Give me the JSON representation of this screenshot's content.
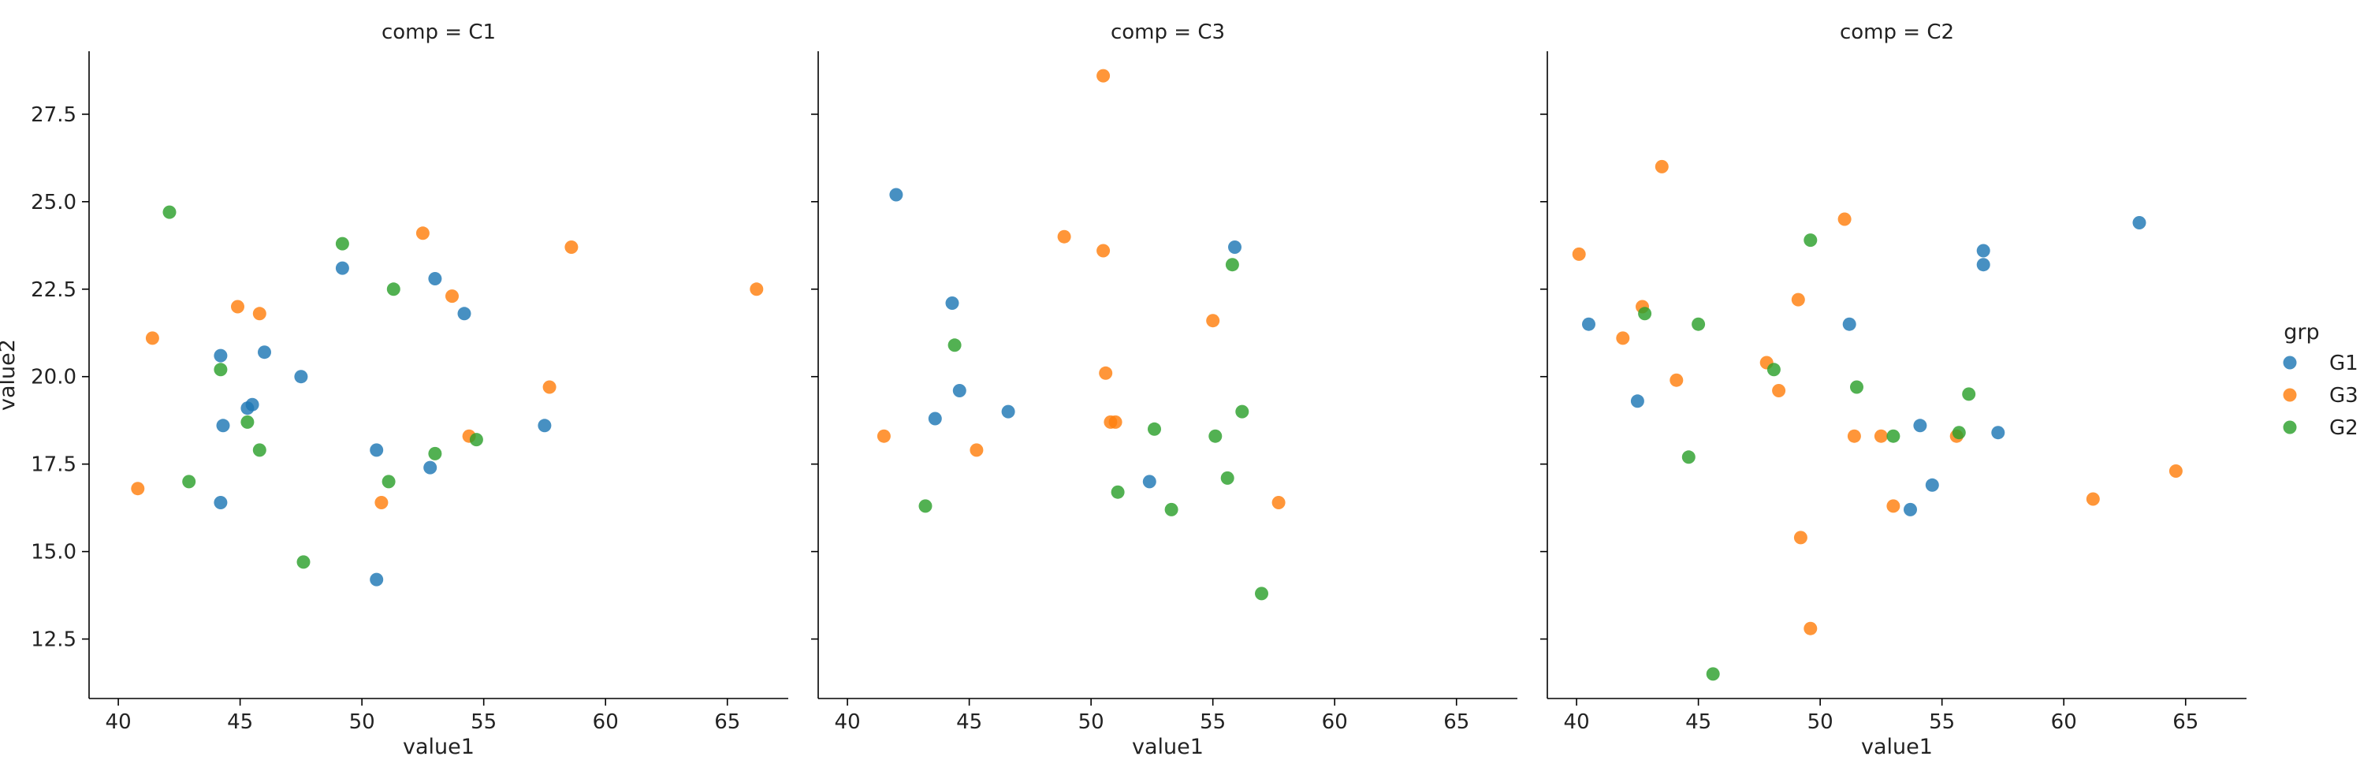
{
  "chart_data": {
    "type": "scatter",
    "xlabel": "value1",
    "ylabel": "value2",
    "xlim": [
      38.8,
      67.5
    ],
    "ylim": [
      10.8,
      29.3
    ],
    "x_ticks": [
      40,
      45,
      50,
      55,
      60,
      65
    ],
    "y_ticks": [
      12.5,
      15.0,
      17.5,
      20.0,
      22.5,
      25.0,
      27.5
    ],
    "grid": false,
    "legend": {
      "title": "grp",
      "placement": "right",
      "entries": [
        {
          "name": "G1",
          "color": "#1f77b4"
        },
        {
          "name": "G3",
          "color": "#ff7f0e"
        },
        {
          "name": "G2",
          "color": "#2ca02c"
        }
      ]
    },
    "facets": [
      {
        "title": "comp = C1",
        "series": [
          {
            "name": "G1",
            "points": [
              [
                44.2,
                20.6
              ],
              [
                46.0,
                20.7
              ],
              [
                47.5,
                20.0
              ],
              [
                44.3,
                18.6
              ],
              [
                45.3,
                19.1
              ],
              [
                45.5,
                19.2
              ],
              [
                44.2,
                16.4
              ],
              [
                49.2,
                23.1
              ],
              [
                53.0,
                22.8
              ],
              [
                54.2,
                21.8
              ],
              [
                50.6,
                17.9
              ],
              [
                52.8,
                17.4
              ],
              [
                57.5,
                18.6
              ],
              [
                50.6,
                14.2
              ]
            ]
          },
          {
            "name": "G3",
            "points": [
              [
                41.4,
                21.1
              ],
              [
                44.9,
                22.0
              ],
              [
                45.8,
                21.8
              ],
              [
                40.8,
                16.8
              ],
              [
                52.5,
                24.1
              ],
              [
                53.7,
                22.3
              ],
              [
                58.6,
                23.7
              ],
              [
                57.7,
                19.7
              ],
              [
                54.4,
                18.3
              ],
              [
                50.8,
                16.4
              ],
              [
                66.2,
                22.5
              ]
            ]
          },
          {
            "name": "G2",
            "points": [
              [
                42.1,
                24.7
              ],
              [
                44.2,
                20.2
              ],
              [
                45.3,
                18.7
              ],
              [
                45.8,
                17.9
              ],
              [
                42.9,
                17.0
              ],
              [
                49.2,
                23.8
              ],
              [
                51.3,
                22.5
              ],
              [
                53.0,
                17.8
              ],
              [
                54.7,
                18.2
              ],
              [
                51.1,
                17.0
              ],
              [
                47.6,
                14.7
              ]
            ]
          }
        ]
      },
      {
        "title": "comp = C3",
        "series": [
          {
            "name": "G1",
            "points": [
              [
                42.0,
                25.2
              ],
              [
                44.3,
                22.1
              ],
              [
                44.6,
                19.6
              ],
              [
                43.6,
                18.8
              ],
              [
                46.6,
                19.0
              ],
              [
                55.9,
                23.7
              ],
              [
                52.4,
                17.0
              ]
            ]
          },
          {
            "name": "G3",
            "points": [
              [
                50.5,
                28.6
              ],
              [
                48.9,
                24.0
              ],
              [
                50.5,
                23.6
              ],
              [
                41.5,
                18.3
              ],
              [
                45.3,
                17.9
              ],
              [
                50.6,
                20.1
              ],
              [
                50.8,
                18.7
              ],
              [
                51.0,
                18.7
              ],
              [
                55.0,
                21.6
              ],
              [
                57.7,
                16.4
              ]
            ]
          },
          {
            "name": "G2",
            "points": [
              [
                44.4,
                20.9
              ],
              [
                43.2,
                16.3
              ],
              [
                55.8,
                23.2
              ],
              [
                52.6,
                18.5
              ],
              [
                56.2,
                19.0
              ],
              [
                55.1,
                18.3
              ],
              [
                51.1,
                16.7
              ],
              [
                55.6,
                17.1
              ],
              [
                53.3,
                16.2
              ],
              [
                57.0,
                13.8
              ]
            ]
          }
        ]
      },
      {
        "title": "comp = C2",
        "series": [
          {
            "name": "G1",
            "points": [
              [
                40.5,
                21.5
              ],
              [
                42.5,
                19.3
              ],
              [
                51.2,
                21.5
              ],
              [
                56.7,
                23.6
              ],
              [
                56.7,
                23.2
              ],
              [
                63.1,
                24.4
              ],
              [
                54.1,
                18.6
              ],
              [
                57.3,
                18.4
              ],
              [
                54.6,
                16.9
              ],
              [
                53.7,
                16.2
              ]
            ]
          },
          {
            "name": "G3",
            "points": [
              [
                40.1,
                23.5
              ],
              [
                43.5,
                26.0
              ],
              [
                41.9,
                21.1
              ],
              [
                42.7,
                22.0
              ],
              [
                44.1,
                19.9
              ],
              [
                51.0,
                24.5
              ],
              [
                49.1,
                22.2
              ],
              [
                47.8,
                20.4
              ],
              [
                48.3,
                19.6
              ],
              [
                51.4,
                18.3
              ],
              [
                52.5,
                18.3
              ],
              [
                55.6,
                18.3
              ],
              [
                53.0,
                16.3
              ],
              [
                49.2,
                15.4
              ],
              [
                49.6,
                12.8
              ],
              [
                61.2,
                16.5
              ],
              [
                64.6,
                17.3
              ]
            ]
          },
          {
            "name": "G2",
            "points": [
              [
                42.8,
                21.8
              ],
              [
                45.0,
                21.5
              ],
              [
                44.6,
                17.7
              ],
              [
                48.1,
                20.2
              ],
              [
                49.6,
                23.9
              ],
              [
                51.5,
                19.7
              ],
              [
                53.0,
                18.3
              ],
              [
                55.7,
                18.4
              ],
              [
                56.1,
                19.5
              ],
              [
                45.6,
                11.5
              ]
            ]
          }
        ]
      }
    ]
  }
}
